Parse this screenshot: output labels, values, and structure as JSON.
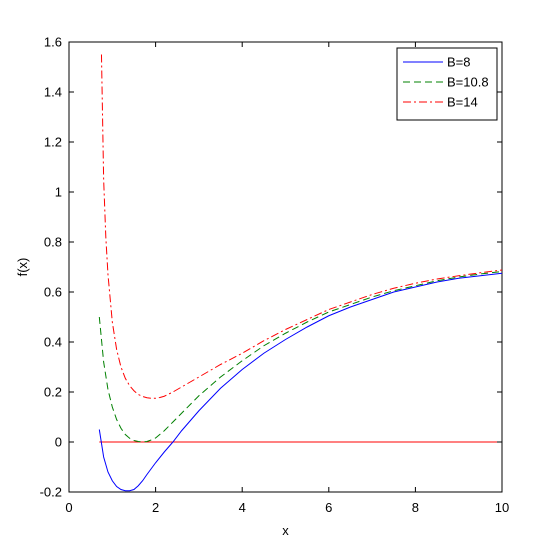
{
  "chart_data": {
    "type": "line",
    "title": "",
    "xlabel": "x",
    "ylabel": "f(x)",
    "xlim": [
      0,
      10
    ],
    "ylim": [
      -0.2,
      1.6
    ],
    "xticks": [
      0,
      2,
      4,
      6,
      8,
      10
    ],
    "xtick_labels": [
      "0",
      "2",
      "4",
      "6",
      "8",
      "10"
    ],
    "yticks": [
      -0.2,
      0,
      0.2,
      0.4,
      0.6,
      0.8,
      1,
      1.2,
      1.4,
      1.6
    ],
    "ytick_labels": [
      "-0.2",
      "0",
      "0.2",
      "0.4",
      "0.6",
      "0.8",
      "1",
      "1.2",
      "1.4",
      "1.6"
    ],
    "grid": false,
    "legend_position": "top-right",
    "series": [
      {
        "name": "B=8",
        "color": "#0000ff",
        "style": "solid",
        "x": [
          0.7,
          0.8,
          0.9,
          1.0,
          1.1,
          1.2,
          1.3,
          1.4,
          1.5,
          1.6,
          1.7,
          1.8,
          2.0,
          2.2,
          2.4,
          2.6,
          2.8,
          3.0,
          3.5,
          4.0,
          4.5,
          5.0,
          5.5,
          6.0,
          6.5,
          7.0,
          7.5,
          8.0,
          8.5,
          9.0,
          9.5,
          10.0
        ],
        "y": [
          0.05,
          -0.06,
          -0.12,
          -0.155,
          -0.178,
          -0.19,
          -0.195,
          -0.195,
          -0.19,
          -0.175,
          -0.155,
          -0.13,
          -0.083,
          -0.04,
          0.0,
          0.045,
          0.085,
          0.125,
          0.215,
          0.29,
          0.355,
          0.41,
          0.46,
          0.505,
          0.54,
          0.57,
          0.6,
          0.62,
          0.64,
          0.655,
          0.665,
          0.675
        ]
      },
      {
        "name": "B=10.8",
        "color": "#008000",
        "style": "dashed",
        "x": [
          0.7,
          0.8,
          0.9,
          1.0,
          1.1,
          1.2,
          1.3,
          1.4,
          1.5,
          1.6,
          1.7,
          1.8,
          1.9,
          2.0,
          2.2,
          2.4,
          2.6,
          2.8,
          3.0,
          3.5,
          4.0,
          4.5,
          5.0,
          5.5,
          6.0,
          6.5,
          7.0,
          7.5,
          8.0,
          8.5,
          9.0,
          9.5,
          10.0
        ],
        "y": [
          0.5,
          0.32,
          0.21,
          0.14,
          0.09,
          0.055,
          0.03,
          0.015,
          0.006,
          0.002,
          0.0,
          0.002,
          0.008,
          0.016,
          0.045,
          0.08,
          0.115,
          0.15,
          0.185,
          0.26,
          0.325,
          0.385,
          0.435,
          0.48,
          0.52,
          0.55,
          0.58,
          0.605,
          0.625,
          0.645,
          0.66,
          0.672,
          0.682
        ]
      },
      {
        "name": "B=14",
        "color": "#ff0000",
        "style": "dashdot",
        "x": [
          0.75,
          0.8,
          0.85,
          0.9,
          1.0,
          1.1,
          1.2,
          1.3,
          1.4,
          1.5,
          1.6,
          1.7,
          1.8,
          1.9,
          2.0,
          2.1,
          2.2,
          2.4,
          2.6,
          2.8,
          3.0,
          3.5,
          4.0,
          4.5,
          5.0,
          5.5,
          6.0,
          6.5,
          7.0,
          7.5,
          8.0,
          8.5,
          9.0,
          9.5,
          10.0
        ],
        "y": [
          1.55,
          1.05,
          0.82,
          0.67,
          0.48,
          0.37,
          0.3,
          0.255,
          0.225,
          0.205,
          0.19,
          0.182,
          0.177,
          0.175,
          0.175,
          0.178,
          0.183,
          0.2,
          0.22,
          0.24,
          0.26,
          0.31,
          0.355,
          0.405,
          0.45,
          0.49,
          0.53,
          0.56,
          0.59,
          0.615,
          0.635,
          0.652,
          0.665,
          0.677,
          0.688
        ]
      }
    ],
    "reference_lines": [
      {
        "y": 0,
        "x_start": 0.7,
        "x_end": 10,
        "color": "#ff0000"
      }
    ]
  }
}
